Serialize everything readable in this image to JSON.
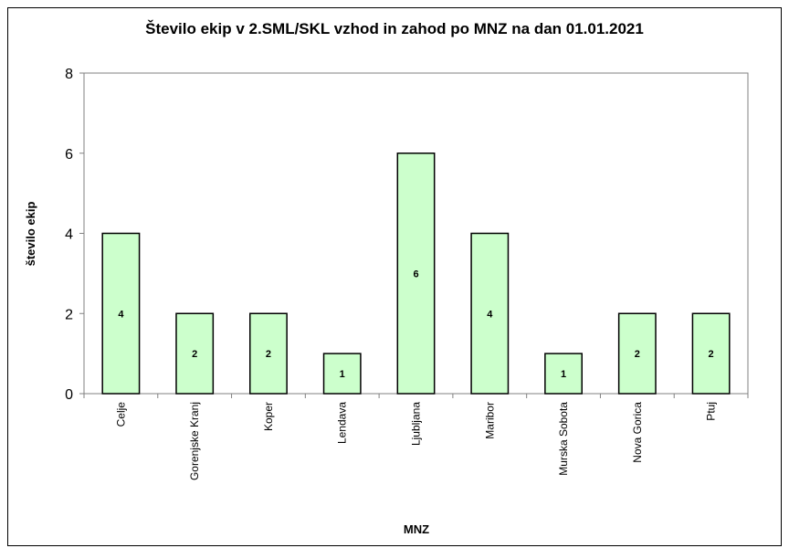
{
  "chart_data": {
    "type": "bar",
    "title": "Število ekip v 2.SML/SKL vzhod in zahod po MNZ na dan 01.01.2021",
    "xlabel": "MNZ",
    "ylabel": "število ekip",
    "categories": [
      "Celje",
      "Gorenjske Kranj",
      "Koper",
      "Lendava",
      "Ljubljana",
      "Maribor",
      "Murska Sobota",
      "Nova Gorica",
      "Ptuj"
    ],
    "values": [
      4,
      2,
      2,
      1,
      6,
      4,
      1,
      2,
      2
    ],
    "data_labels": [
      "4",
      "2",
      "2",
      "1",
      "6",
      "4",
      "1",
      "2",
      "2"
    ],
    "ylim": [
      0,
      8
    ],
    "yticks": [
      0,
      2,
      4,
      6,
      8
    ],
    "grid": false,
    "legend": "none",
    "colors": {
      "bar_fill": "#ccffcc",
      "bar_stroke": "#000000",
      "axis": "#808080",
      "text": "#000000"
    }
  }
}
